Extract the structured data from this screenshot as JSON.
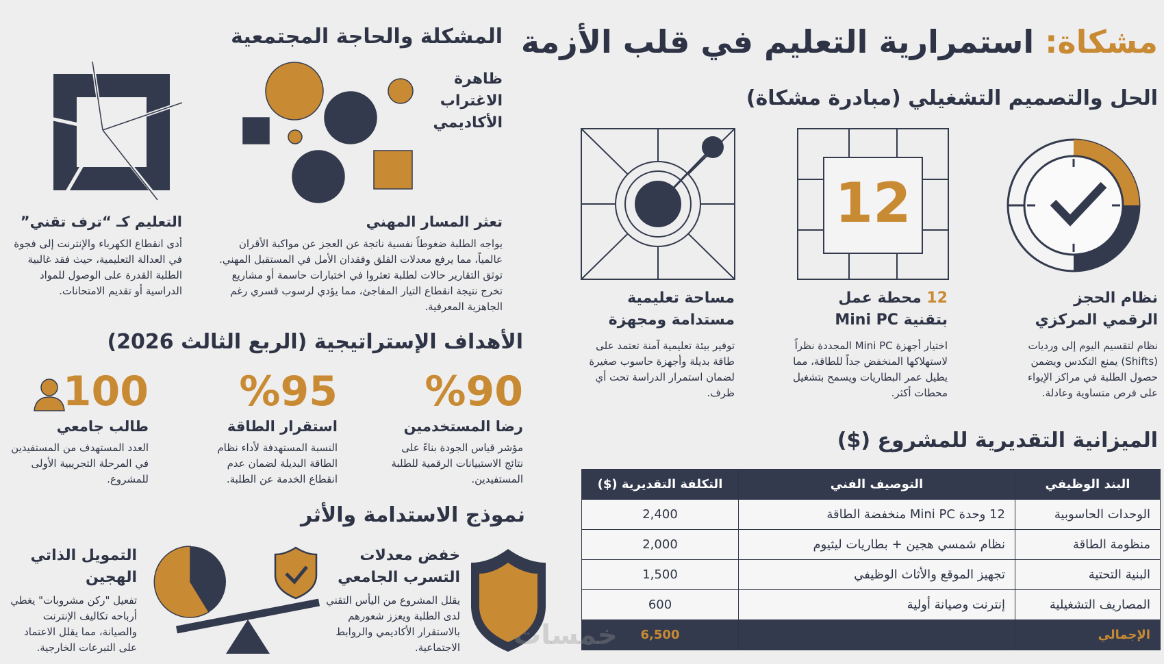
{
  "header": {
    "title_accent": "مشكاة:",
    "title": "استمرارية التعليم في قلب الأزمة"
  },
  "solution": {
    "heading": "الحل والتصميم التشغيلي (مبادرة مشكاة)",
    "items": [
      {
        "title": "نظام الحجز الرقمي المركزي",
        "text": "نظام لتقسيم اليوم إلى ورديات (Shifts) يمنع التكدس ويضمن حصول الطلبة في مراكز الإيواء على فرص متساوية وعادلة."
      },
      {
        "icon_label": "12",
        "title_number": "12",
        "title": "محطة عمل بتقنية Mini PC",
        "text": "اختيار أجهزة Mini PC المجددة نظراً لاستهلاكها المنخفض جداً للطاقة، مما يطيل عمر البطاريات ويسمح بتشغيل محطات أكثر."
      },
      {
        "title": "مساحة تعليمية مستدامة ومجهزة",
        "text": "توفير بيئة تعليمية آمنة تعتمد على طاقة بديلة وأجهزة حاسوب صغيرة لضمان استمرار الدراسة تحت أي ظرف."
      }
    ]
  },
  "budget": {
    "heading": "الميزانية التقديرية للمشروع ($)",
    "columns": [
      "البند الوظيفي",
      "التوصيف الفني",
      "التكلفة التقديرية ($)"
    ],
    "rows": [
      [
        "الوحدات الحاسوبية",
        "12 وحدة Mini PC منخفضة الطاقة",
        "2,400"
      ],
      [
        "منظومة الطاقة",
        "نظام شمسي هجين + بطاريات ليثيوم",
        "2,000"
      ],
      [
        "البنية التحتية",
        "تجهيز الموقع والأثاث الوظيفي",
        "1,500"
      ],
      [
        "المصاريف التشغيلية",
        "إنترنت وصيانة أولية",
        "600"
      ]
    ],
    "total": [
      "الإجمالي",
      "6,500"
    ]
  },
  "problem": {
    "heading": "المشكلة والحاجة المجتمعية",
    "phenomenon": "ظاهرة الاغتراب الأكاديمي",
    "items": [
      {
        "title": "تعثر المسار المهني",
        "text": "يواجه الطلبة ضغوطاً نفسية ناتجة عن العجز عن مواكبة الأقران عالمياً، مما يرفع معدلات القلق وفقدان الأمل في المستقبل المهني. توثق التقارير حالات لطلبة تعثروا في اختبارات حاسمة أو مشاريع تخرج نتيجة انقطاع التيار المفاجئ، مما يؤدي لرسوب قسري رغم الجاهزية المعرفية."
      },
      {
        "title": "التعليم كـ “ترف تقني”",
        "text": "أدى انقطاع الكهرباء والإنترنت إلى فجوة في العدالة التعليمية، حيث فقد غالبية الطلبة القدرة على الوصول للمواد الدراسية أو تقديم الامتحانات."
      }
    ]
  },
  "goals": {
    "heading": "الأهداف الإستراتيجية (الربع الثالث 2026)",
    "items": [
      {
        "value": "%90",
        "title": "رضا المستخدمين",
        "text": "مؤشر قياس الجودة بناءً على نتائج الاستبيانات الرقمية للطلبة المستفيدين."
      },
      {
        "value": "%95",
        "title": "استقرار الطاقة",
        "text": "النسبة المستهدفة لأداء نظام الطاقة البديلة لضمان عدم انقطاع الخدمة عن الطلبة."
      },
      {
        "value": "100",
        "title": "طالب جامعي",
        "text": "العدد المستهدف من المستفيدين في المرحلة التجريبية الأولى للمشروع."
      }
    ]
  },
  "sustainability": {
    "heading": "نموذج الاستدامة والأثر",
    "items": [
      {
        "title": "خفض معدلات التسرب الجامعي",
        "text": "يقلل المشروع من اليأس التقني لدى الطلبة ويعزز شعورهم بالاستقرار الأكاديمي والروابط الاجتماعية."
      },
      {
        "title": "التمويل الذاتي الهجين",
        "text": "تفعيل \"ركن مشروبات\" يغطي أرباحه تكاليف الإنترنت والصيانة، مما يقلل الاعتماد على التبرعات الخارجية."
      }
    ]
  },
  "watermark": "خمسات"
}
